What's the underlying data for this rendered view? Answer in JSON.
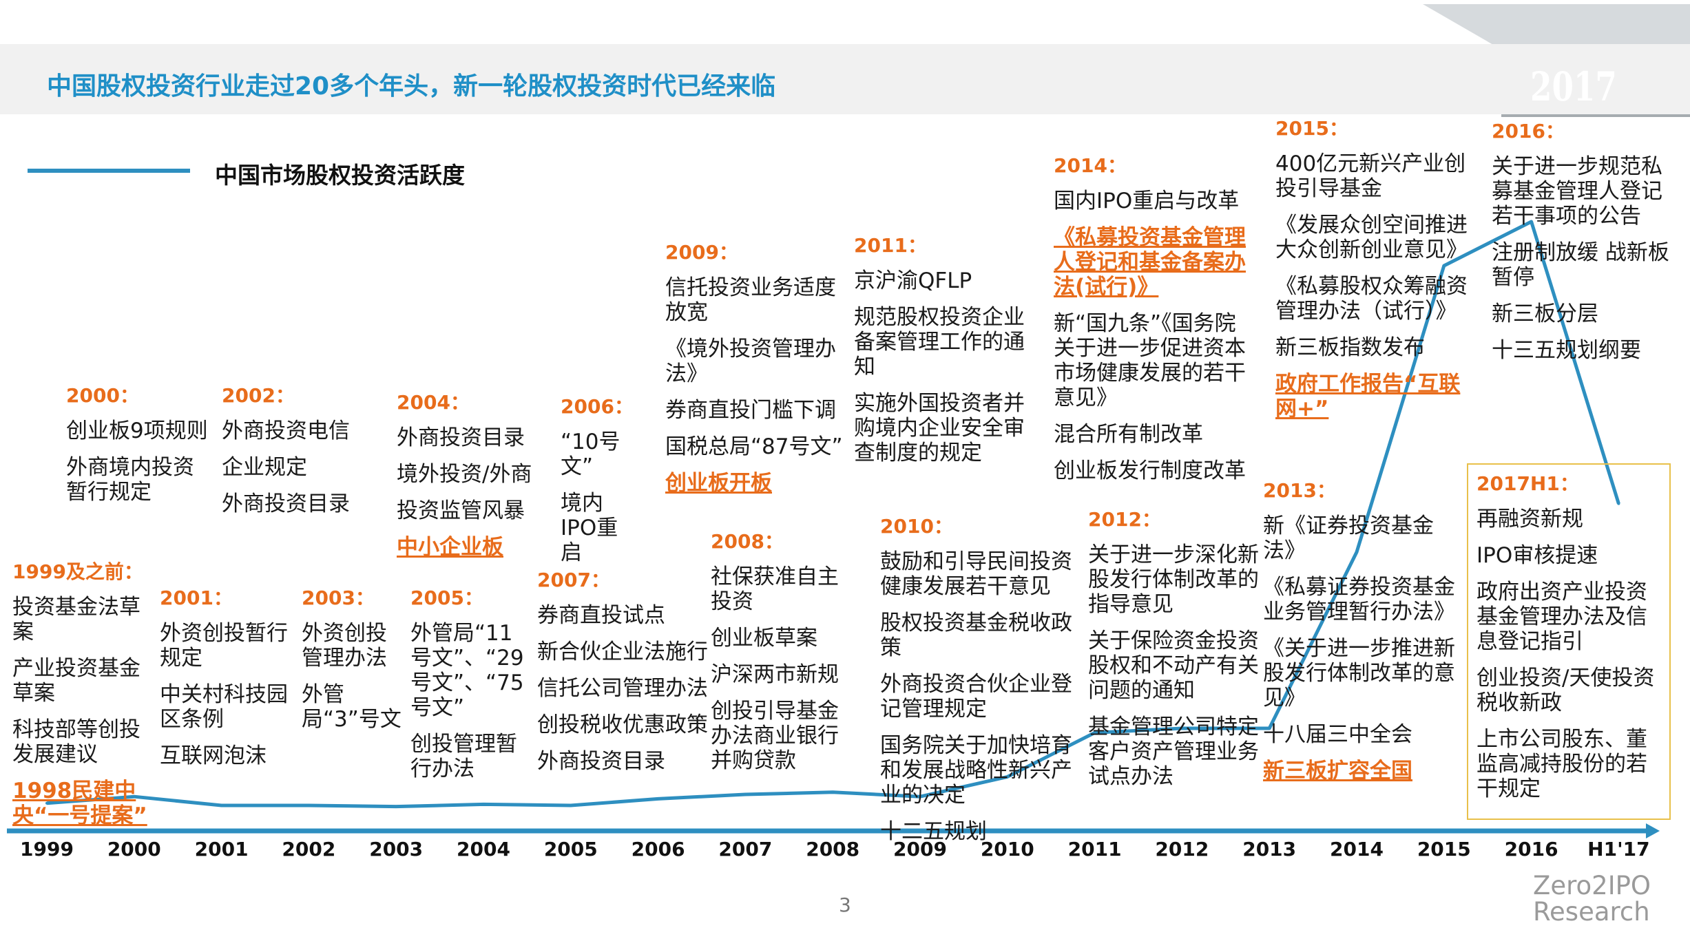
{
  "title": "中国股权投资行业走过20多个年头，新一轮股权投资时代已经来临",
  "year_badge": "2017",
  "page_number": "3",
  "brand": {
    "line1": "Zero2IPO",
    "line2": "Research"
  },
  "colors": {
    "line": "#2e8fc0",
    "title": "#1f8fc7",
    "highlight": "#e86c1b",
    "box": "#e8c04a"
  },
  "chart_data": {
    "type": "line",
    "legend": [
      "中国市场股权投资活跃度"
    ],
    "categories": [
      "1999",
      "2000",
      "2001",
      "2002",
      "2003",
      "2004",
      "2005",
      "2006",
      "2007",
      "2008",
      "2009",
      "2010",
      "2011",
      "2012",
      "2013",
      "2014",
      "2015",
      "2016",
      "H1'17"
    ],
    "series": [
      {
        "name": "中国市场股权投资活跃度",
        "values": [
          6,
          9,
          5,
          5,
          4.5,
          5.5,
          5,
          8,
          10,
          11,
          9,
          18,
          38,
          40,
          40,
          120,
          250,
          270,
          142
        ]
      }
    ],
    "ylim": [
      0,
      300
    ],
    "grid": false,
    "legend_position": "top-left"
  },
  "events": [
    {
      "year": "1999及之前：",
      "items": [
        {
          "t": "投资基金法草案"
        },
        {
          "t": "产业投资基金草案"
        },
        {
          "t": "科技部等创投发展建议"
        },
        {
          "t": "1998民建中央“一号提案”",
          "hl": true
        }
      ]
    },
    {
      "year": "2000：",
      "items": [
        {
          "t": "创业板9项规则"
        },
        {
          "t": "外商境内投资暂行规定"
        }
      ]
    },
    {
      "year": "2001：",
      "items": [
        {
          "t": "外资创投暂行规定"
        },
        {
          "t": "中关村科技园区条例"
        },
        {
          "t": "互联网泡沫"
        }
      ]
    },
    {
      "year": "2002：",
      "items": [
        {
          "t": "外商投资电信"
        },
        {
          "t": "企业规定"
        },
        {
          "t": "外商投资目录"
        }
      ]
    },
    {
      "year": "2003：",
      "items": [
        {
          "t": "外资创投管理办法"
        },
        {
          "t": "外管局“3”号文"
        }
      ]
    },
    {
      "year": "2004：",
      "items": [
        {
          "t": "外商投资目录"
        },
        {
          "t": "境外投资/外商"
        },
        {
          "t": "投资监管风暴"
        },
        {
          "t": "中小企业板",
          "hl": true
        }
      ]
    },
    {
      "year": "2005：",
      "items": [
        {
          "t": "外管局“11号文”、“29号文”、“75号文”"
        },
        {
          "t": "创投管理暂行办法"
        }
      ]
    },
    {
      "year": "2006：",
      "items": [
        {
          "t": "“10号文”"
        },
        {
          "t": "境内IPO重启"
        }
      ]
    },
    {
      "year": "2007：",
      "items": [
        {
          "t": "券商直投试点"
        },
        {
          "t": "新合伙企业法施行"
        },
        {
          "t": "信托公司管理办法"
        },
        {
          "t": "创投税收优惠政策"
        },
        {
          "t": "外商投资目录"
        }
      ]
    },
    {
      "year": "2008：",
      "items": [
        {
          "t": "社保获准自主投资"
        },
        {
          "t": "创业板草案"
        },
        {
          "t": "沪深两市新规"
        },
        {
          "t": "创投引导基金办法商业银行并购贷款"
        }
      ]
    },
    {
      "year": "2009：",
      "items": [
        {
          "t": "信托投资业务适度放宽"
        },
        {
          "t": "《境外投资管理办法》"
        },
        {
          "t": "券商直投门槛下调"
        },
        {
          "t": "国税总局“87号文”"
        },
        {
          "t": "创业板开板",
          "hl": true
        }
      ]
    },
    {
      "year": "2010：",
      "items": [
        {
          "t": "鼓励和引导民间投资健康发展若干意见"
        },
        {
          "t": "股权投资基金税收政策"
        },
        {
          "t": "外商投资合伙企业登记管理规定"
        },
        {
          "t": "国务院关于加快培育和发展战略性新兴产业的决定"
        },
        {
          "t": "十二五规划"
        }
      ]
    },
    {
      "year": "2011：",
      "items": [
        {
          "t": "京沪渝QFLP"
        },
        {
          "t": "规范股权投资企业备案管理工作的通知"
        },
        {
          "t": "实施外国投资者并购境内企业安全审查制度的规定"
        }
      ]
    },
    {
      "year": "2012：",
      "items": [
        {
          "t": "关于进一步深化新股发行体制改革的指导意见"
        },
        {
          "t": "关于保险资金投资股权和不动产有关问题的通知"
        },
        {
          "t": "基金管理公司特定客户资产管理业务试点办法"
        }
      ]
    },
    {
      "year": "2013：",
      "items": [
        {
          "t": "新《证券投资基金法》"
        },
        {
          "t": "《私募证券投资基金业务管理暂行办法》"
        },
        {
          "t": "《关于进一步推进新股发行体制改革的意见》"
        },
        {
          "t": "十八届三中全会"
        },
        {
          "t": "新三板扩容全国",
          "hl": true
        }
      ]
    },
    {
      "year": "2014：",
      "items": [
        {
          "t": "国内IPO重启与改革"
        },
        {
          "t": "《私募投资基金管理人登记和基金备案办法(试行)》",
          "hl": true
        },
        {
          "t": "新“国九条”《国务院关于进一步促进资本市场健康发展的若干意见》"
        },
        {
          "t": "混合所有制改革"
        },
        {
          "t": "创业板发行制度改革"
        }
      ]
    },
    {
      "year": "2015：",
      "items": [
        {
          "t": "400亿元新兴产业创投引导基金"
        },
        {
          "t": "《发展众创空间推进大众创新创业意见》"
        },
        {
          "t": "《私募股权众筹融资管理办法（试行）》"
        },
        {
          "t": "新三板指数发布"
        },
        {
          "t": "政府工作报告“互联网+”",
          "hl": true
        }
      ]
    },
    {
      "year": "2016：",
      "items": [
        {
          "t": "关于进一步规范私募基金管理人登记若干事项的公告"
        },
        {
          "t": "注册制放缓 战新板暂停"
        },
        {
          "t": "新三板分层"
        },
        {
          "t": "十三五规划纲要"
        }
      ]
    },
    {
      "year": "2017H1：",
      "items": [
        {
          "t": "再融资新规"
        },
        {
          "t": "IPO审核提速"
        },
        {
          "t": "政府出资产业投资基金管理办法及信息登记指引"
        },
        {
          "t": "创业投资/天使投资税收新政"
        },
        {
          "t": "上市公司股东、董监高减持股份的若干规定"
        }
      ]
    }
  ]
}
